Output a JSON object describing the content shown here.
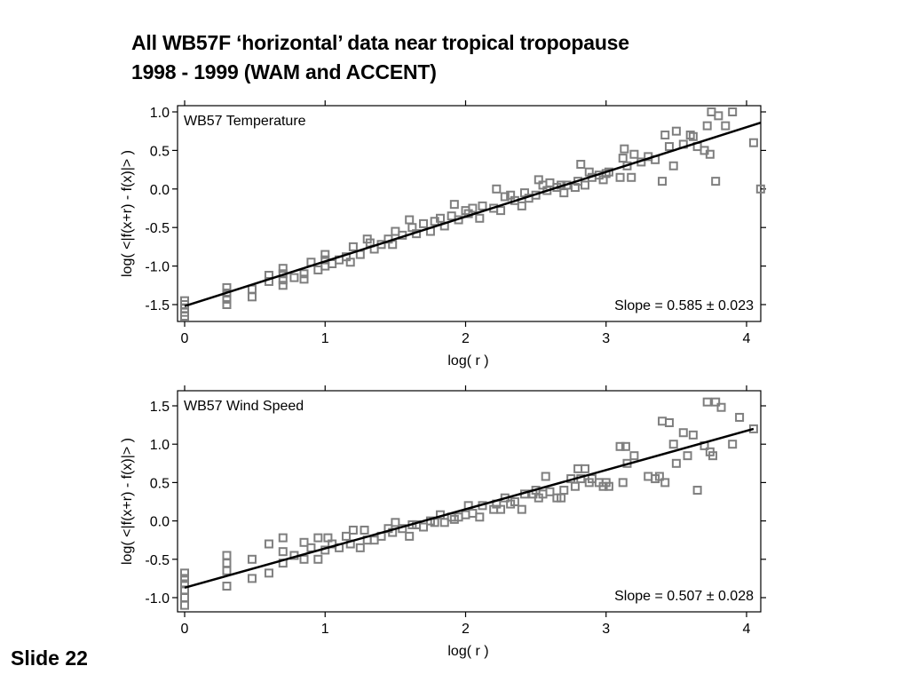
{
  "slide": {
    "title_line1": "All WB57F ‘horizontal’ data near tropical tropopause",
    "title_line2": "1998 - 1999 (WAM and ACCENT)",
    "slide_number": "Slide 22"
  },
  "chart_data": [
    {
      "type": "scatter",
      "panel_label": "WB57 Temperature",
      "xlabel": "log( r )",
      "ylabel": "log( <|f(x+r) - f(x)|> )",
      "xlim": [
        0,
        4.1
      ],
      "ylim": [
        -1.7,
        1.05
      ],
      "xticks": [
        "0",
        "1",
        "2",
        "3",
        "4"
      ],
      "yticks": [
        "1.0",
        "0.5",
        "0.0",
        "-0.5",
        "-1.0",
        "-1.5"
      ],
      "annotation": "Slope = 0.585 ± 0.023",
      "fit_line": {
        "x": [
          0,
          4.1
        ],
        "y": [
          -1.52,
          0.86
        ]
      },
      "marker": "open-square",
      "marker_color": "#7f7f7f",
      "line_color": "#000000",
      "grid": false,
      "points": [
        [
          0,
          -1.45
        ],
        [
          0,
          -1.5
        ],
        [
          0,
          -1.55
        ],
        [
          0,
          -1.6
        ],
        [
          0,
          -1.65
        ],
        [
          0.3,
          -1.28
        ],
        [
          0.3,
          -1.35
        ],
        [
          0.3,
          -1.43
        ],
        [
          0.3,
          -1.5
        ],
        [
          0.48,
          -1.3
        ],
        [
          0.48,
          -1.4
        ],
        [
          0.6,
          -1.12
        ],
        [
          0.6,
          -1.2
        ],
        [
          0.7,
          -1.03
        ],
        [
          0.7,
          -1.1
        ],
        [
          0.7,
          -1.18
        ],
        [
          0.7,
          -1.25
        ],
        [
          0.78,
          -1.15
        ],
        [
          0.85,
          -1.1
        ],
        [
          0.85,
          -1.17
        ],
        [
          0.9,
          -0.95
        ],
        [
          0.95,
          -1.05
        ],
        [
          1.0,
          -0.85
        ],
        [
          1.0,
          -0.92
        ],
        [
          1.0,
          -1.0
        ],
        [
          1.05,
          -0.97
        ],
        [
          1.1,
          -0.92
        ],
        [
          1.15,
          -0.88
        ],
        [
          1.18,
          -0.95
        ],
        [
          1.2,
          -0.75
        ],
        [
          1.25,
          -0.85
        ],
        [
          1.3,
          -0.65
        ],
        [
          1.32,
          -0.7
        ],
        [
          1.35,
          -0.78
        ],
        [
          1.4,
          -0.72
        ],
        [
          1.45,
          -0.65
        ],
        [
          1.48,
          -0.72
        ],
        [
          1.5,
          -0.55
        ],
        [
          1.55,
          -0.6
        ],
        [
          1.6,
          -0.4
        ],
        [
          1.62,
          -0.5
        ],
        [
          1.65,
          -0.58
        ],
        [
          1.7,
          -0.45
        ],
        [
          1.75,
          -0.55
        ],
        [
          1.78,
          -0.42
        ],
        [
          1.82,
          -0.38
        ],
        [
          1.85,
          -0.48
        ],
        [
          1.9,
          -0.35
        ],
        [
          1.92,
          -0.2
        ],
        [
          1.95,
          -0.4
        ],
        [
          2.0,
          -0.28
        ],
        [
          2.02,
          -0.32
        ],
        [
          2.05,
          -0.25
        ],
        [
          2.1,
          -0.38
        ],
        [
          2.12,
          -0.22
        ],
        [
          2.2,
          -0.25
        ],
        [
          2.22,
          0.0
        ],
        [
          2.25,
          -0.28
        ],
        [
          2.28,
          -0.1
        ],
        [
          2.32,
          -0.08
        ],
        [
          2.35,
          -0.15
        ],
        [
          2.4,
          -0.22
        ],
        [
          2.42,
          -0.05
        ],
        [
          2.45,
          -0.12
        ],
        [
          2.5,
          -0.08
        ],
        [
          2.52,
          0.12
        ],
        [
          2.55,
          0.05
        ],
        [
          2.58,
          -0.02
        ],
        [
          2.6,
          0.08
        ],
        [
          2.65,
          0.02
        ],
        [
          2.68,
          0.05
        ],
        [
          2.7,
          -0.05
        ],
        [
          2.72,
          0.05
        ],
        [
          2.78,
          0.02
        ],
        [
          2.8,
          0.1
        ],
        [
          2.82,
          0.32
        ],
        [
          2.85,
          0.05
        ],
        [
          2.88,
          0.22
        ],
        [
          2.9,
          0.15
        ],
        [
          2.95,
          0.18
        ],
        [
          2.98,
          0.12
        ],
        [
          3.0,
          0.2
        ],
        [
          3.02,
          0.22
        ],
        [
          3.1,
          0.15
        ],
        [
          3.12,
          0.4
        ],
        [
          3.13,
          0.52
        ],
        [
          3.15,
          0.3
        ],
        [
          3.18,
          0.15
        ],
        [
          3.2,
          0.45
        ],
        [
          3.25,
          0.35
        ],
        [
          3.3,
          0.42
        ],
        [
          3.35,
          0.38
        ],
        [
          3.4,
          0.1
        ],
        [
          3.42,
          0.7
        ],
        [
          3.45,
          0.55
        ],
        [
          3.48,
          0.3
        ],
        [
          3.5,
          0.75
        ],
        [
          3.55,
          0.58
        ],
        [
          3.6,
          0.7
        ],
        [
          3.62,
          0.68
        ],
        [
          3.65,
          0.55
        ],
        [
          3.7,
          0.5
        ],
        [
          3.72,
          0.82
        ],
        [
          3.74,
          0.45
        ],
        [
          3.75,
          1.0
        ],
        [
          3.78,
          0.1
        ],
        [
          3.8,
          0.95
        ],
        [
          3.85,
          0.82
        ],
        [
          3.9,
          1.0
        ],
        [
          4.05,
          0.6
        ],
        [
          4.1,
          0.0
        ]
      ]
    },
    {
      "type": "scatter",
      "panel_label": "WB57 Wind Speed",
      "xlabel": "log( r )",
      "ylabel": "log( <|f(x+r) - f(x)|> )",
      "xlim": [
        0,
        4.1
      ],
      "ylim": [
        -1.18,
        1.65
      ],
      "xticks": [
        "0",
        "1",
        "2",
        "3",
        "4"
      ],
      "yticks": [
        "1.5",
        "1.0",
        "0.5",
        "0.0",
        "-0.5",
        "-1.0"
      ],
      "annotation": "Slope = 0.507 ± 0.028",
      "fit_line": {
        "x": [
          0,
          4.05
        ],
        "y": [
          -0.87,
          1.2
        ]
      },
      "marker": "open-square",
      "marker_color": "#7f7f7f",
      "line_color": "#000000",
      "grid": false,
      "points": [
        [
          0,
          -0.68
        ],
        [
          0,
          -0.75
        ],
        [
          0,
          -0.82
        ],
        [
          0,
          -0.9
        ],
        [
          0,
          -1.0
        ],
        [
          0,
          -1.1
        ],
        [
          0.3,
          -0.45
        ],
        [
          0.3,
          -0.55
        ],
        [
          0.3,
          -0.65
        ],
        [
          0.3,
          -0.85
        ],
        [
          0.48,
          -0.5
        ],
        [
          0.48,
          -0.75
        ],
        [
          0.6,
          -0.3
        ],
        [
          0.6,
          -0.68
        ],
        [
          0.7,
          -0.22
        ],
        [
          0.7,
          -0.4
        ],
        [
          0.7,
          -0.55
        ],
        [
          0.78,
          -0.45
        ],
        [
          0.85,
          -0.28
        ],
        [
          0.85,
          -0.5
        ],
        [
          0.9,
          -0.35
        ],
        [
          0.95,
          -0.22
        ],
        [
          0.95,
          -0.5
        ],
        [
          1.0,
          -0.38
        ],
        [
          1.02,
          -0.22
        ],
        [
          1.05,
          -0.3
        ],
        [
          1.1,
          -0.35
        ],
        [
          1.15,
          -0.2
        ],
        [
          1.18,
          -0.3
        ],
        [
          1.2,
          -0.12
        ],
        [
          1.25,
          -0.35
        ],
        [
          1.28,
          -0.12
        ],
        [
          1.3,
          -0.25
        ],
        [
          1.35,
          -0.25
        ],
        [
          1.4,
          -0.2
        ],
        [
          1.45,
          -0.1
        ],
        [
          1.48,
          -0.15
        ],
        [
          1.5,
          -0.02
        ],
        [
          1.55,
          -0.1
        ],
        [
          1.6,
          -0.2
        ],
        [
          1.62,
          -0.05
        ],
        [
          1.65,
          -0.05
        ],
        [
          1.7,
          -0.08
        ],
        [
          1.75,
          0.0
        ],
        [
          1.78,
          -0.02
        ],
        [
          1.82,
          0.08
        ],
        [
          1.85,
          -0.02
        ],
        [
          1.9,
          0.05
        ],
        [
          1.92,
          0.02
        ],
        [
          1.95,
          0.05
        ],
        [
          2.0,
          0.08
        ],
        [
          2.02,
          0.2
        ],
        [
          2.05,
          0.1
        ],
        [
          2.1,
          0.05
        ],
        [
          2.12,
          0.2
        ],
        [
          2.2,
          0.15
        ],
        [
          2.22,
          0.22
        ],
        [
          2.25,
          0.15
        ],
        [
          2.28,
          0.3
        ],
        [
          2.32,
          0.22
        ],
        [
          2.35,
          0.25
        ],
        [
          2.4,
          0.15
        ],
        [
          2.42,
          0.35
        ],
        [
          2.48,
          0.35
        ],
        [
          2.5,
          0.4
        ],
        [
          2.52,
          0.3
        ],
        [
          2.55,
          0.35
        ],
        [
          2.57,
          0.58
        ],
        [
          2.6,
          0.38
        ],
        [
          2.65,
          0.3
        ],
        [
          2.68,
          0.3
        ],
        [
          2.7,
          0.4
        ],
        [
          2.75,
          0.55
        ],
        [
          2.78,
          0.45
        ],
        [
          2.8,
          0.68
        ],
        [
          2.82,
          0.55
        ],
        [
          2.85,
          0.68
        ],
        [
          2.88,
          0.5
        ],
        [
          2.9,
          0.55
        ],
        [
          2.95,
          0.5
        ],
        [
          2.98,
          0.45
        ],
        [
          3.0,
          0.5
        ],
        [
          3.02,
          0.45
        ],
        [
          3.1,
          0.97
        ],
        [
          3.12,
          0.5
        ],
        [
          3.14,
          0.97
        ],
        [
          3.15,
          0.75
        ],
        [
          3.2,
          0.85
        ],
        [
          3.3,
          0.58
        ],
        [
          3.35,
          0.55
        ],
        [
          3.38,
          0.58
        ],
        [
          3.4,
          1.3
        ],
        [
          3.42,
          0.5
        ],
        [
          3.45,
          1.28
        ],
        [
          3.48,
          1.0
        ],
        [
          3.5,
          0.75
        ],
        [
          3.55,
          1.15
        ],
        [
          3.58,
          0.85
        ],
        [
          3.62,
          1.12
        ],
        [
          3.65,
          0.4
        ],
        [
          3.7,
          0.98
        ],
        [
          3.72,
          1.55
        ],
        [
          3.74,
          0.9
        ],
        [
          3.76,
          0.85
        ],
        [
          3.78,
          1.55
        ],
        [
          3.82,
          1.48
        ],
        [
          3.9,
          1.0
        ],
        [
          3.95,
          1.35
        ],
        [
          4.05,
          1.2
        ]
      ]
    }
  ]
}
